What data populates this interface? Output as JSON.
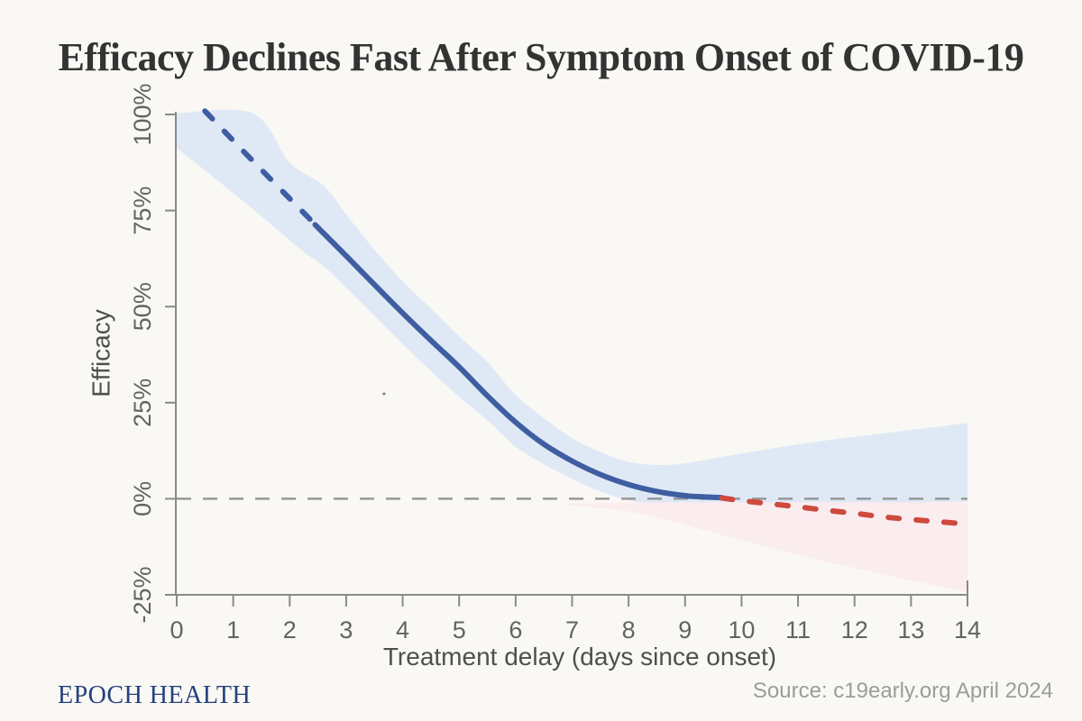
{
  "page": {
    "title": "Efficacy Declines Fast After Symptom Onset of COVID-19",
    "brand": "EPOCH HEALTH",
    "source": "Source: c19early.org April 2024"
  },
  "colors": {
    "background": "#faf8f4",
    "title_text": "#333333",
    "brand_navy": "#24407d",
    "source_gray": "#9c9c9c",
    "axis": "#8a8a8a",
    "tick_label": "#636363",
    "axis_title": "#4f4f4f",
    "zero_line": "#979797",
    "line_blue": "#3f5ea1",
    "line_red": "#cd4a3d",
    "band_blue": "#dfe9f6",
    "band_pink": "#fbecf0",
    "artifact_dot": "#777777"
  },
  "chart_data": {
    "type": "line",
    "title": "Efficacy Declines Fast After Symptom Onset of COVID-19",
    "xlabel": "Treatment delay (days since onset)",
    "ylabel": "Efficacy",
    "xlim": [
      0,
      14
    ],
    "ylim": [
      -25,
      100
    ],
    "grid": false,
    "legend": "none",
    "x_ticks": {
      "values": [
        0,
        1,
        2,
        3,
        4,
        5,
        6,
        7,
        8,
        9,
        10,
        11,
        12,
        13,
        14
      ],
      "labels": [
        "0",
        "1",
        "2",
        "3",
        "4",
        "5",
        "6",
        "7",
        "8",
        "9",
        "10",
        "11",
        "12",
        "13",
        "14"
      ]
    },
    "y_ticks": {
      "values": [
        100,
        75,
        50,
        25,
        0,
        -25
      ],
      "labels": [
        "100%",
        "75%",
        "50%",
        "25%",
        "0%",
        "-25%"
      ]
    },
    "zero_reference_line": {
      "y": 0,
      "style": "dashed",
      "color": "#979797"
    },
    "series": [
      {
        "name": "efficacy-extrapolated-early",
        "line_style": "dashed",
        "color": "#3f5ea1",
        "points": [
          [
            0.5,
            100.9
          ],
          [
            1,
            93.2
          ],
          [
            1.5,
            85.6
          ],
          [
            2,
            78.1
          ],
          [
            2.45,
            71.4
          ]
        ]
      },
      {
        "name": "efficacy-fitted",
        "line_style": "solid",
        "color": "#3f5ea1",
        "points": [
          [
            2.45,
            71.3
          ],
          [
            3,
            63.2
          ],
          [
            3.5,
            55.7
          ],
          [
            4,
            48.3
          ],
          [
            4.5,
            41.2
          ],
          [
            5,
            34.3
          ],
          [
            5.5,
            26.8
          ],
          [
            6,
            19.9
          ],
          [
            6.5,
            14.2
          ],
          [
            7,
            9.8
          ],
          [
            7.5,
            6.3
          ],
          [
            8,
            3.7
          ],
          [
            8.5,
            1.9
          ],
          [
            9,
            0.8
          ],
          [
            9.3,
            0.5
          ],
          [
            9.65,
            0.3
          ]
        ]
      },
      {
        "name": "efficacy-extrapolated-late",
        "line_style": "dashed",
        "color": "#cd4a3d",
        "points": [
          [
            9.65,
            0.2
          ],
          [
            10,
            -0.5
          ],
          [
            10.5,
            -1.3
          ],
          [
            11,
            -2.1
          ],
          [
            11.5,
            -3.0
          ],
          [
            12,
            -3.8
          ],
          [
            12.5,
            -4.7
          ],
          [
            13,
            -5.4
          ],
          [
            13.5,
            -6.0
          ],
          [
            14,
            -6.6
          ]
        ]
      }
    ],
    "bands": [
      {
        "name": "confidence-band-blue",
        "color": "#dfe9f6",
        "upper": [
          [
            0,
            100.3
          ],
          [
            1.35,
            100.3
          ],
          [
            2,
            87.5
          ],
          [
            2.6,
            81.5
          ],
          [
            3,
            74
          ],
          [
            3.5,
            64.8
          ],
          [
            4,
            56.6
          ],
          [
            4.5,
            49.5
          ],
          [
            5,
            42.3
          ],
          [
            5.5,
            35.6
          ],
          [
            6,
            27
          ],
          [
            6.5,
            21
          ],
          [
            7,
            15.8
          ],
          [
            7.5,
            12.2
          ],
          [
            8,
            9.6
          ],
          [
            8.5,
            8.8
          ],
          [
            9,
            9.2
          ],
          [
            9.65,
            10.9
          ],
          [
            10.5,
            13
          ],
          [
            11.5,
            15.2
          ],
          [
            12.5,
            17
          ],
          [
            13.5,
            18.8
          ],
          [
            14,
            19.7
          ]
        ],
        "lower": [
          [
            0,
            91.3
          ],
          [
            0.75,
            82.5
          ],
          [
            1.5,
            73.5
          ],
          [
            2.2,
            64.8
          ],
          [
            2.6,
            60.5
          ],
          [
            3,
            54.9
          ],
          [
            3.5,
            47.6
          ],
          [
            4,
            40.3
          ],
          [
            4.5,
            33.2
          ],
          [
            5,
            26.5
          ],
          [
            5.5,
            20.4
          ],
          [
            6,
            13.5
          ],
          [
            6.5,
            9
          ],
          [
            7,
            5.2
          ],
          [
            7.5,
            1.9
          ],
          [
            8,
            -0.4
          ],
          [
            8.5,
            -1.3
          ],
          [
            9,
            -1.6
          ],
          [
            10,
            -1.5
          ],
          [
            11,
            -1.3
          ],
          [
            12,
            -1.2
          ],
          [
            13,
            -1
          ],
          [
            14,
            -0.8
          ]
        ]
      },
      {
        "name": "confidence-band-pink",
        "color": "#fbecf0",
        "upper": [
          [
            6.9,
            -1.3
          ],
          [
            8,
            -1
          ],
          [
            9,
            -0.9
          ],
          [
            10,
            -0.9
          ],
          [
            11,
            -0.9
          ],
          [
            12,
            -0.9
          ],
          [
            13,
            -0.9
          ],
          [
            14,
            -0.9
          ]
        ],
        "lower": [
          [
            6.9,
            -1.6
          ],
          [
            7.5,
            -2.4
          ],
          [
            8,
            -3.3
          ],
          [
            8.5,
            -4.9
          ],
          [
            9,
            -6.8
          ],
          [
            9.5,
            -8.8
          ],
          [
            10,
            -10.8
          ],
          [
            10.5,
            -12.7
          ],
          [
            11,
            -14.6
          ],
          [
            11.5,
            -16.4
          ],
          [
            12,
            -18
          ],
          [
            12.5,
            -19.7
          ],
          [
            13,
            -21.3
          ],
          [
            13.5,
            -22.8
          ],
          [
            14,
            -24.3
          ]
        ]
      }
    ],
    "artifact_dot": {
      "x_day": 3.67,
      "y_efficacy": 27.3
    }
  }
}
